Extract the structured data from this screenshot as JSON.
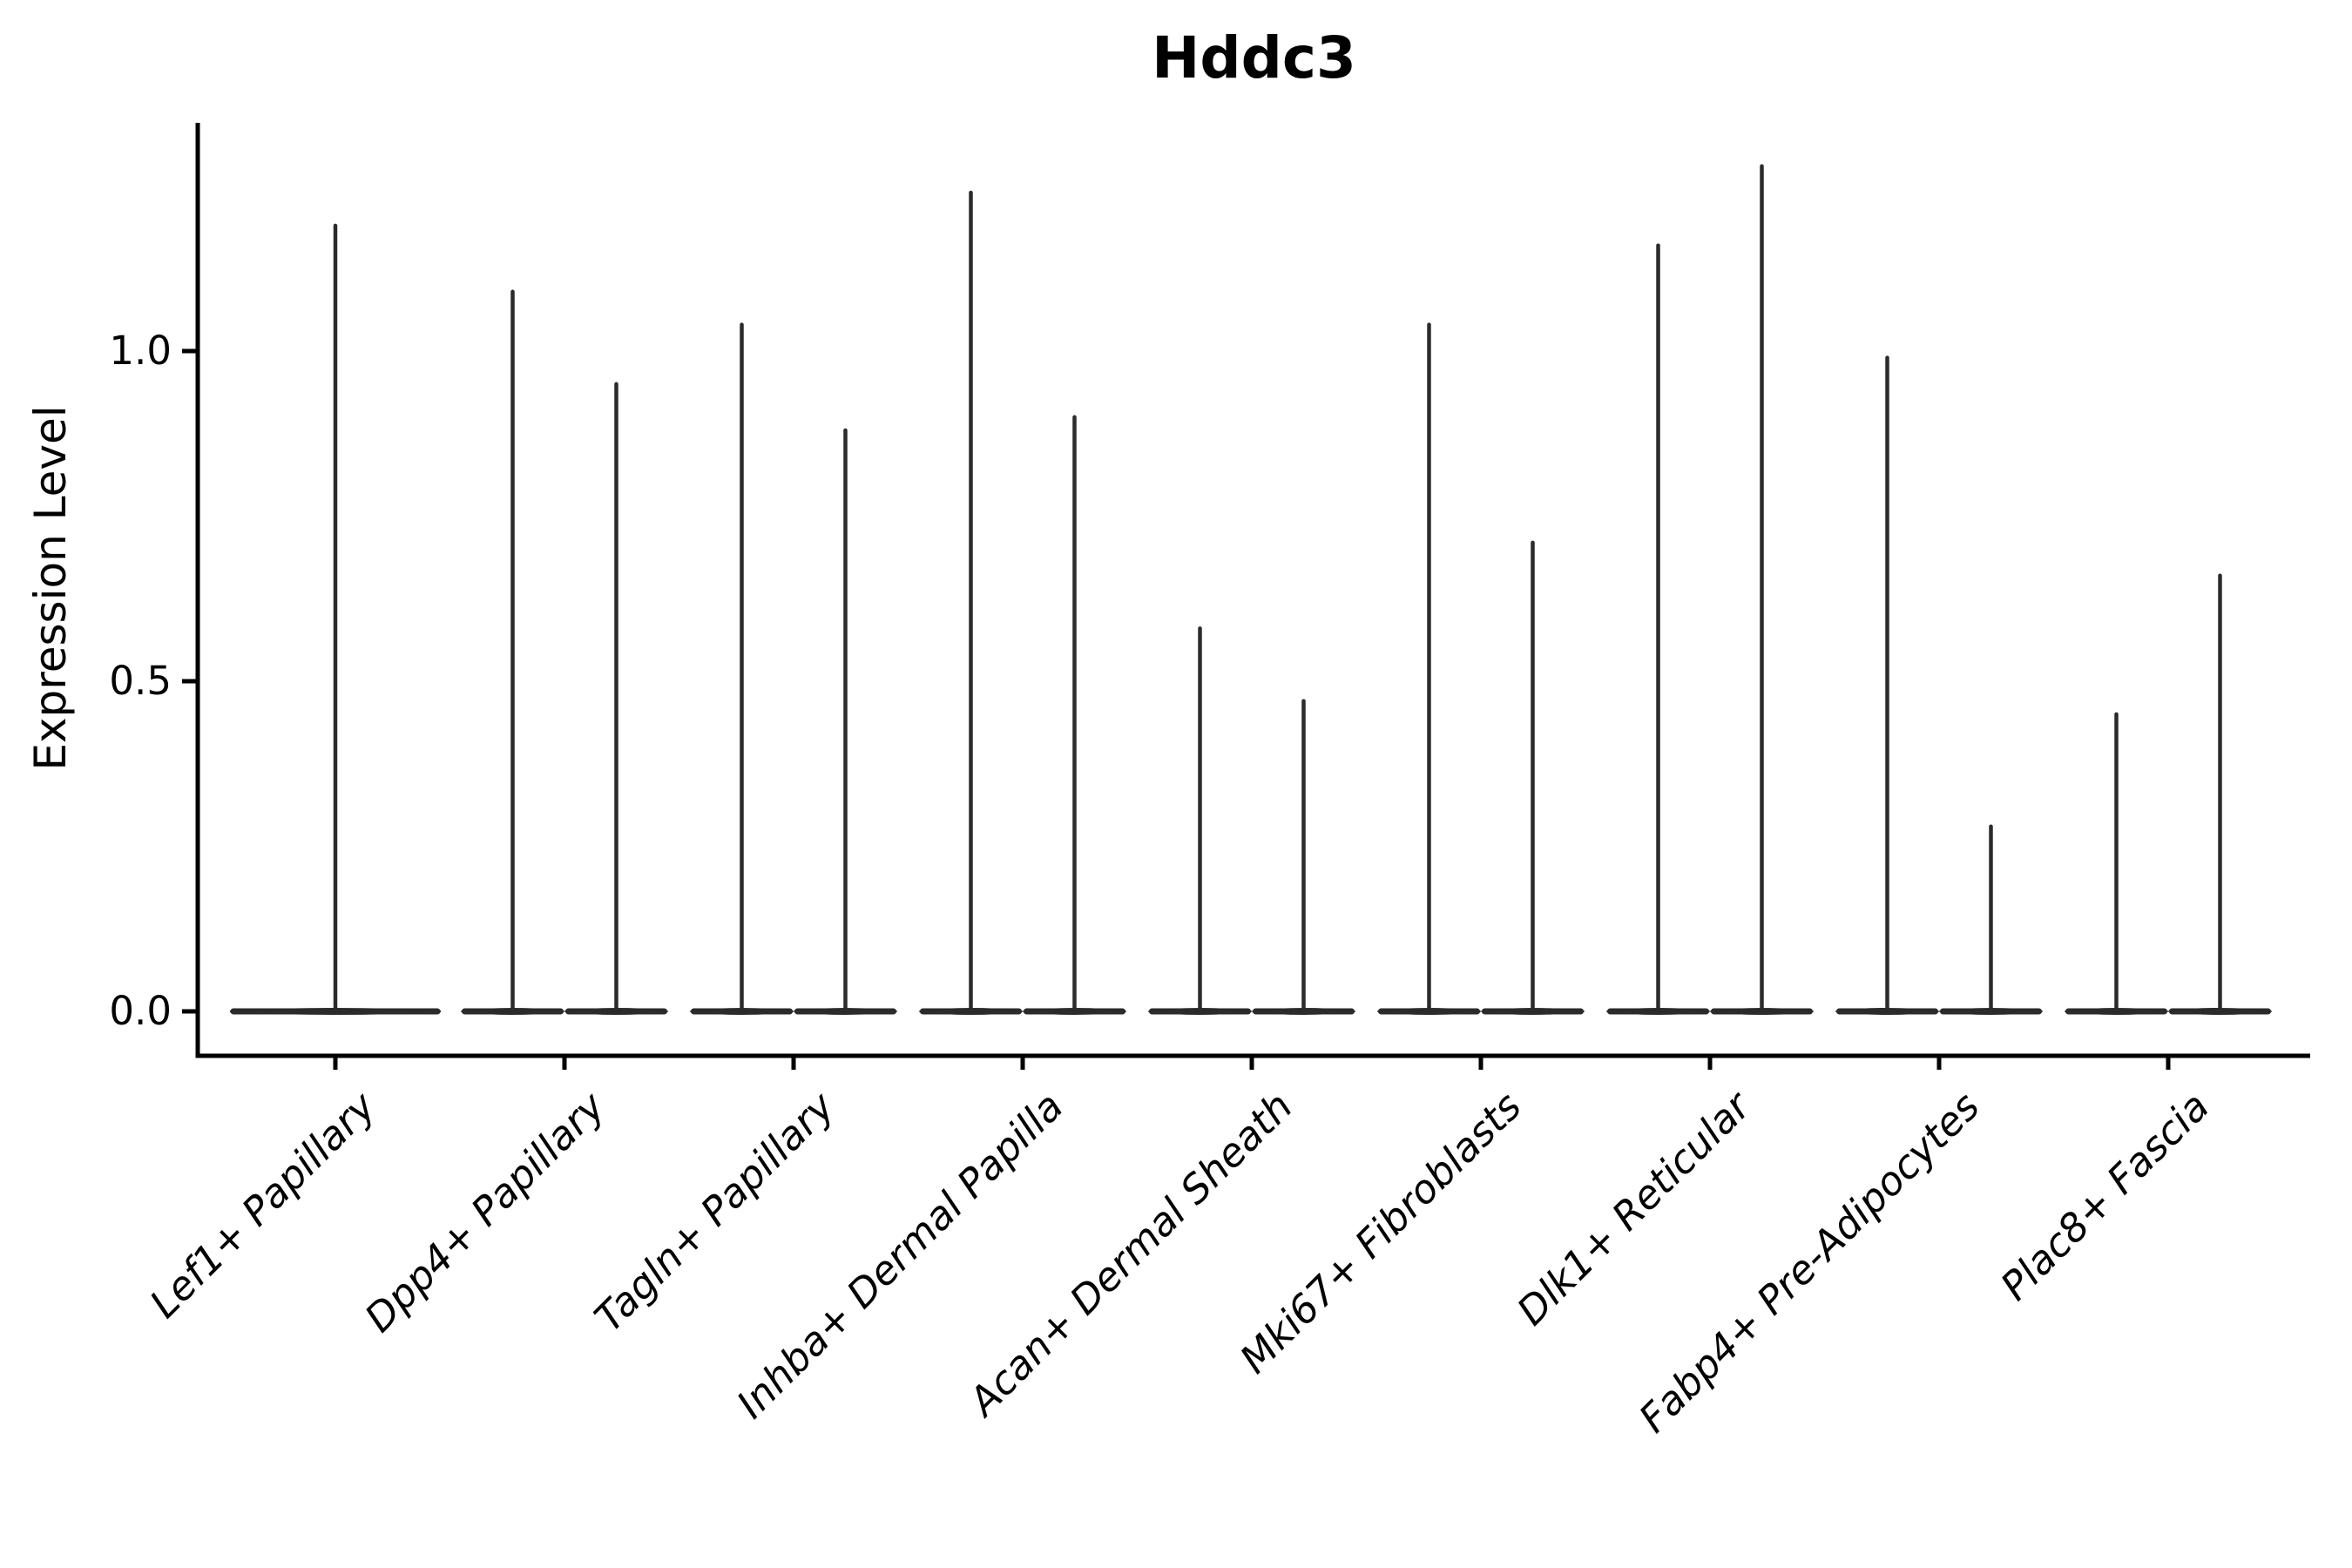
{
  "title": "Hddc3",
  "y_axis": {
    "label": "Expression Level",
    "tick_labels": [
      "1.0",
      "0.5",
      "0.0"
    ]
  },
  "chart_data": {
    "type": "violin",
    "title": "Hddc3",
    "xlabel": "",
    "ylabel": "Expression Level",
    "ylim": [
      -0.07,
      1.35
    ],
    "yticks": [
      1.0,
      0.5,
      0.0
    ],
    "grid": "off",
    "legend": "none",
    "shape_note": "ultra-thin violins: wide flat density base at 0 with a hairline spike up to each group's maximum expression value",
    "categories": [
      "Lef1+ Papillary",
      "Dpp4+ Papillary",
      "Tagln+ Papillary",
      "Inhba+ Dermal Papilla",
      "Acan+ Dermal Sheath",
      "Mki67+ Fibroblasts",
      "Dlk1+ Reticular",
      "Fabp4+ Pre-Adipocytes",
      "Plac8+ Fascia"
    ],
    "violins": [
      {
        "category": "Lef1+ Papillary",
        "max_values": [
          1.19
        ]
      },
      {
        "category": "Dpp4+ Papillary",
        "max_values": [
          1.09,
          0.95
        ]
      },
      {
        "category": "Tagln+ Papillary",
        "max_values": [
          1.04,
          0.88
        ]
      },
      {
        "category": "Inhba+ Dermal Papilla",
        "max_values": [
          1.24,
          0.9
        ]
      },
      {
        "category": "Acan+ Dermal Sheath",
        "max_values": [
          0.58,
          0.47
        ]
      },
      {
        "category": "Mki67+ Fibroblasts",
        "max_values": [
          1.04,
          0.71
        ]
      },
      {
        "category": "Dlk1+ Reticular",
        "max_values": [
          1.16,
          1.28
        ]
      },
      {
        "category": "Fabp4+ Pre-Adipocytes",
        "max_values": [
          0.99,
          0.28
        ]
      },
      {
        "category": "Plac8+ Fascia",
        "max_values": [
          0.45,
          0.66
        ]
      }
    ]
  },
  "colors": {
    "violin_stroke": "#2b2b2b",
    "axis": "#000000",
    "text": "#000000",
    "background": "#ffffff"
  }
}
